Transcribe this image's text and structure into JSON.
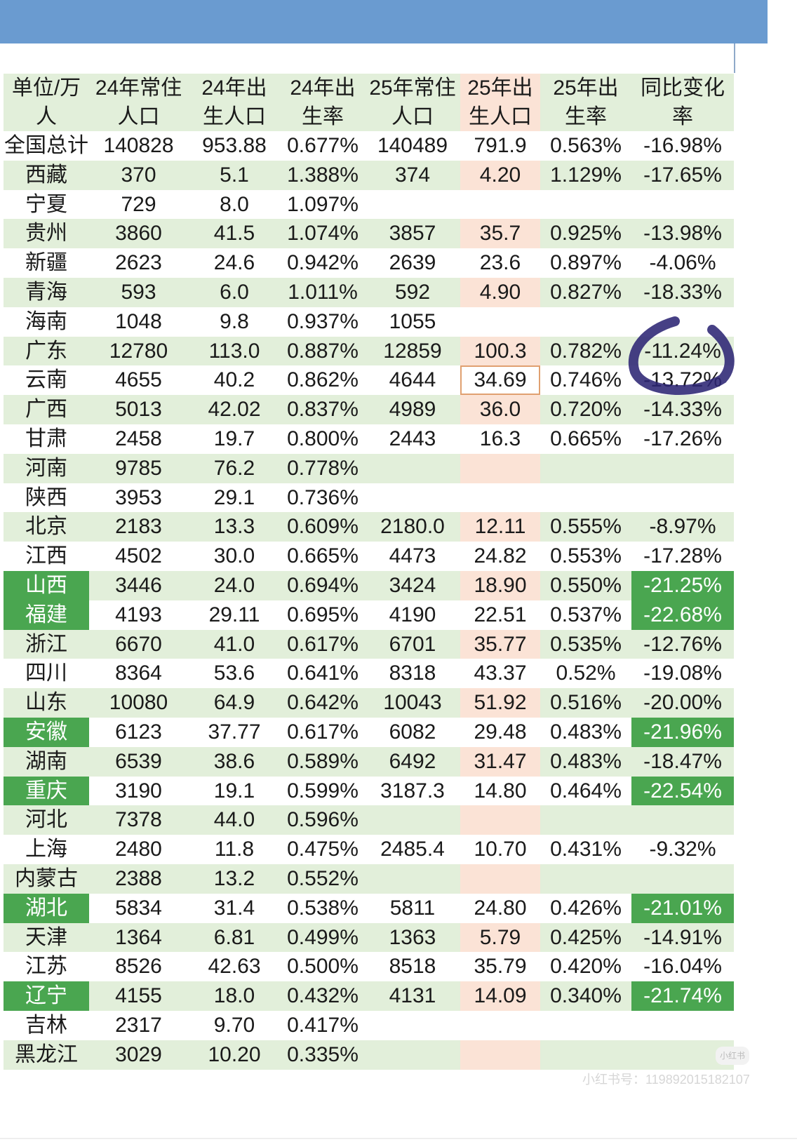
{
  "header": [
    [
      "单位/万",
      "人"
    ],
    [
      "24年常住",
      "人口"
    ],
    [
      "24年出",
      "生人口"
    ],
    [
      "24年出",
      "生率"
    ],
    [
      "25年常住",
      "人口"
    ],
    [
      "25年出",
      "生人口"
    ],
    [
      "25年出",
      "生率"
    ],
    [
      "同比变化",
      "率"
    ]
  ],
  "rows": [
    [
      "全国总计",
      "140828",
      "953.88",
      "0.677%",
      "140489",
      "791.9",
      "0.563%",
      "-16.98%"
    ],
    [
      "西藏",
      "370",
      "5.1",
      "1.388%",
      "374",
      "4.20",
      "1.129%",
      "-17.65%"
    ],
    [
      "宁夏",
      "729",
      "8.0",
      "1.097%",
      "",
      "",
      "",
      ""
    ],
    [
      "贵州",
      "3860",
      "41.5",
      "1.074%",
      "3857",
      "35.7",
      "0.925%",
      "-13.98%"
    ],
    [
      "新疆",
      "2623",
      "24.6",
      "0.942%",
      "2639",
      "23.6",
      "0.897%",
      "-4.06%"
    ],
    [
      "青海",
      "593",
      "6.0",
      "1.011%",
      "592",
      "4.90",
      "0.827%",
      "-18.33%"
    ],
    [
      "海南",
      "1048",
      "9.8",
      "0.937%",
      "1055",
      "",
      "",
      ""
    ],
    [
      "广东",
      "12780",
      "113.0",
      "0.887%",
      "12859",
      "100.3",
      "0.782%",
      "-11.24%"
    ],
    [
      "云南",
      "4655",
      "40.2",
      "0.862%",
      "4644",
      "34.69",
      "0.746%",
      "-13.72%"
    ],
    [
      "广西",
      "5013",
      "42.02",
      "0.837%",
      "4989",
      "36.0",
      "0.720%",
      "-14.33%"
    ],
    [
      "甘肃",
      "2458",
      "19.7",
      "0.800%",
      "2443",
      "16.3",
      "0.665%",
      "-17.26%"
    ],
    [
      "河南",
      "9785",
      "76.2",
      "0.778%",
      "",
      "",
      "",
      ""
    ],
    [
      "陕西",
      "3953",
      "29.1",
      "0.736%",
      "",
      "",
      "",
      ""
    ],
    [
      "北京",
      "2183",
      "13.3",
      "0.609%",
      "2180.0",
      "12.11",
      "0.555%",
      "-8.97%"
    ],
    [
      "江西",
      "4502",
      "30.0",
      "0.665%",
      "4473",
      "24.82",
      "0.553%",
      "-17.28%"
    ],
    [
      "山西",
      "3446",
      "24.0",
      "0.694%",
      "3424",
      "18.90",
      "0.550%",
      "-21.25%"
    ],
    [
      "福建",
      "4193",
      "29.11",
      "0.695%",
      "4190",
      "22.51",
      "0.537%",
      "-22.68%"
    ],
    [
      "浙江",
      "6670",
      "41.0",
      "0.617%",
      "6701",
      "35.77",
      "0.535%",
      "-12.76%"
    ],
    [
      "四川",
      "8364",
      "53.6",
      "0.641%",
      "8318",
      "43.37",
      "0.52%",
      "-19.08%"
    ],
    [
      "山东",
      "10080",
      "64.9",
      "0.642%",
      "10043",
      "51.92",
      "0.516%",
      "-20.00%"
    ],
    [
      "安徽",
      "6123",
      "37.77",
      "0.617%",
      "6082",
      "29.48",
      "0.483%",
      "-21.96%"
    ],
    [
      "湖南",
      "6539",
      "38.6",
      "0.589%",
      "6492",
      "31.47",
      "0.483%",
      "-18.47%"
    ],
    [
      "重庆",
      "3190",
      "19.1",
      "0.599%",
      "3187.3",
      "14.80",
      "0.464%",
      "-22.54%"
    ],
    [
      "河北",
      "7378",
      "44.0",
      "0.596%",
      "",
      "",
      "",
      ""
    ],
    [
      "上海",
      "2480",
      "11.8",
      "0.475%",
      "2485.4",
      "10.70",
      "0.431%",
      "-9.32%"
    ],
    [
      "内蒙古",
      "2388",
      "13.2",
      "0.552%",
      "",
      "",
      "",
      ""
    ],
    [
      "湖北",
      "5834",
      "31.4",
      "0.538%",
      "5811",
      "24.80",
      "0.426%",
      "-21.01%"
    ],
    [
      "天津",
      "1364",
      "6.81",
      "0.499%",
      "1363",
      "5.79",
      "0.425%",
      "-14.91%"
    ],
    [
      "江苏",
      "8526",
      "42.63",
      "0.500%",
      "8518",
      "35.79",
      "0.420%",
      "-16.04%"
    ],
    [
      "辽宁",
      "4155",
      "18.0",
      "0.432%",
      "4131",
      "14.09",
      "0.340%",
      "-21.74%"
    ],
    [
      "吉林",
      "2317",
      "9.70",
      "0.417%",
      "",
      "",
      "",
      ""
    ],
    [
      "黑龙江",
      "3029",
      "10.20",
      "0.335%",
      "",
      "",
      "",
      ""
    ]
  ],
  "highlighted_rows": [
    "山西",
    "福建",
    "安徽",
    "重庆",
    "湖北",
    "辽宁"
  ],
  "selected_cell": {
    "row": "云南",
    "column": "25年出生人口"
  },
  "colors": {
    "header_bar": "#6a9bd0",
    "band_green": "#e2efda",
    "pink_column": "#fbe3d6",
    "highlight_green": "#4aa650",
    "annotation_circle": "#2c2574"
  },
  "watermark": {
    "badge": "小红书",
    "text": "小红书号：119892015182107"
  }
}
